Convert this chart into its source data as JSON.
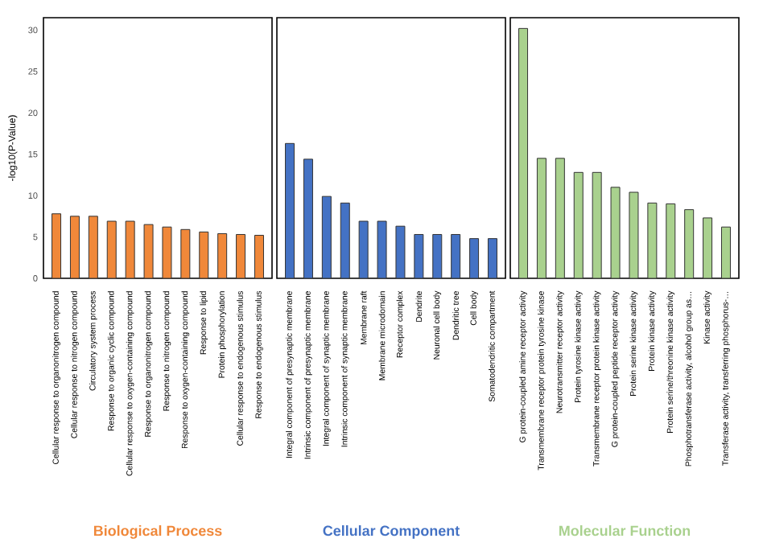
{
  "chart_data": [
    {
      "type": "bar",
      "ylabel": "-log10(P-Value)",
      "xlabel": "Biological Process",
      "color": "#f0883a",
      "ylim": [
        0,
        31.5
      ],
      "yticks": [
        0,
        5,
        10,
        15,
        20,
        25,
        30
      ],
      "categories": [
        "Cellular response to organonitrogen compound",
        "Cellular response to nitrogen compound",
        "Circulatory system process",
        "Response to organic cyclic compound",
        "Cellular response to oxygen-containing compound",
        "Response to organonitrogen compound",
        "Response to nitrogen compound",
        "Response to oxygen-containing compound",
        "Response to lipid",
        "Protein phosphorylation",
        "Cellular response to endogenous stimulus",
        "Response to endogenous stimulus"
      ],
      "values": [
        7.8,
        7.5,
        7.5,
        6.9,
        6.9,
        6.5,
        6.2,
        5.9,
        5.6,
        5.4,
        5.3,
        5.2
      ]
    },
    {
      "type": "bar",
      "xlabel": "Cellular Component",
      "color": "#4472c4",
      "ylim": [
        0,
        31.5
      ],
      "yticks": [
        0,
        5,
        10,
        15,
        20,
        25,
        30
      ],
      "tick_labels": "x",
      "categories": [
        "Integral component of presynaptic membrane",
        "Intrinsic component of presynaptic membrane",
        "Integral component of synaptic membrane",
        "Intrinsic component of synaptic membrane",
        "Membrane raft",
        "Membrane microdomain",
        "Receptor complex",
        "Dendrite",
        "Neuronal cell body",
        "Dendritic tree",
        "Cell body",
        "Somatodendritic compartment"
      ],
      "values": [
        16.3,
        14.4,
        9.9,
        9.1,
        6.9,
        6.9,
        6.3,
        5.3,
        5.3,
        5.3,
        4.8,
        4.8
      ]
    },
    {
      "type": "bar",
      "xlabel": "Molecular Function",
      "color": "#a9d18e",
      "ylim": [
        0,
        31.5
      ],
      "yticks": [
        0,
        5,
        10,
        15,
        20,
        25,
        30
      ],
      "tick_labels": "x",
      "categories": [
        "G protein-coupled amine receptor activity",
        "Transmembrane receptor protein tyrosine kinase",
        "Neurotransmitter receptor activity",
        "Protein tyrosine kinase activity",
        "Transmembrane receptor protein kinase activity",
        "G protein-coupled peptide receptor activity",
        "Protein serine kinase activity",
        "Protein kinase activity",
        "Protein serine/threonine kinase activity",
        "Phosphotransferase activity, alcohol group as…",
        "Kinase activity",
        "Transferase activity, transferring phosphorus-…"
      ],
      "values": [
        30.2,
        14.5,
        14.5,
        12.8,
        12.8,
        11.0,
        10.4,
        9.1,
        9.0,
        8.3,
        7.3,
        6.2
      ]
    }
  ]
}
